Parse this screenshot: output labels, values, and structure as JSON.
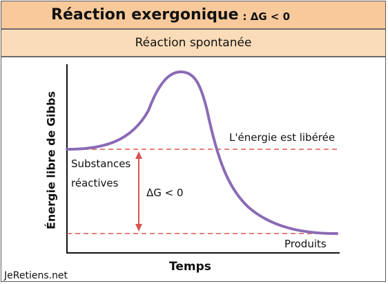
{
  "header": {
    "title": "Réaction exergonique",
    "title_suffix": ": ΔG < 0",
    "subtitle": "Réaction spontanée"
  },
  "diagram": {
    "y_axis_label": "Énergie libre de Gibbs",
    "x_axis_label": "Temps",
    "reactants_label_line1": "Substances",
    "reactants_label_line2": "réactives",
    "products_label": "Produits",
    "energy_released_label": "L'énergie est libérée",
    "delta_g_label": "ΔG < 0",
    "curve_color": "#8a6bb5",
    "dashed_line_color": "#d9534f",
    "arrow_color": "#d9534f"
  },
  "footer": {
    "watermark": "JeRetiens.net"
  }
}
